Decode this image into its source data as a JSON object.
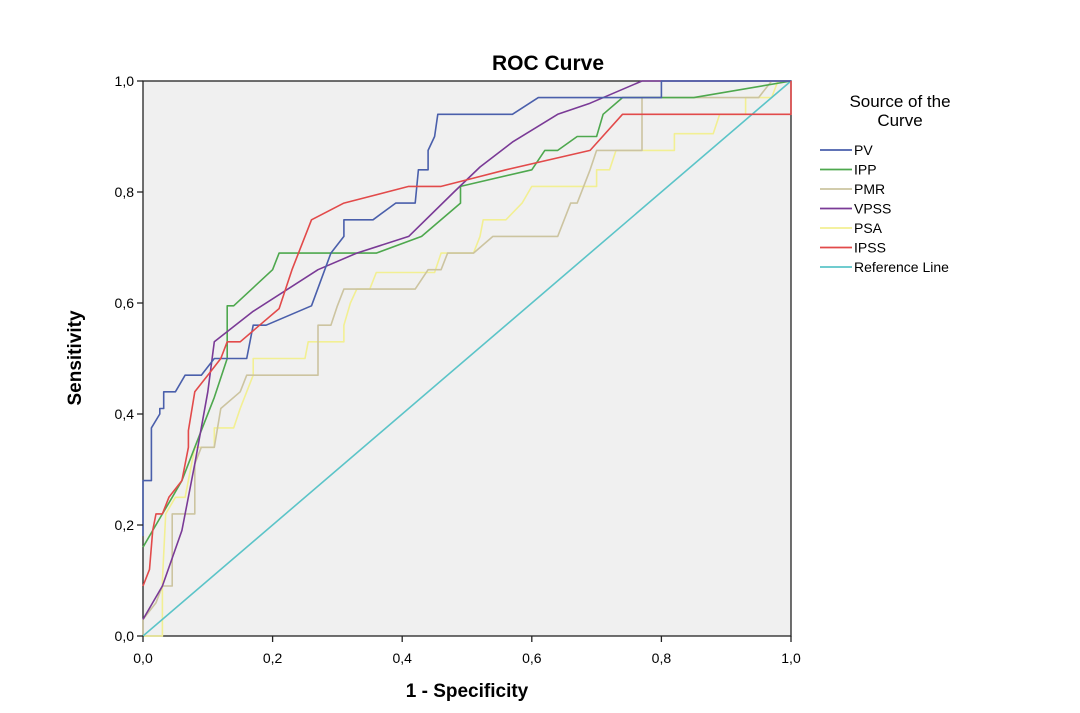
{
  "chart_data": {
    "type": "line",
    "title": "ROC Curve",
    "xlabel": "1 - Specificity",
    "ylabel": "Sensitivity",
    "xlim": [
      0,
      1
    ],
    "ylim": [
      0,
      1
    ],
    "xticks": [
      "0,0",
      "0,2",
      "0,4",
      "0,6",
      "0,8",
      "1,0"
    ],
    "yticks": [
      "0,0",
      "0,2",
      "0,4",
      "0,6",
      "0,8",
      "1,0"
    ],
    "grid": false,
    "legend": {
      "title_line1": "Source of the",
      "title_line2": "Curve",
      "placement": "right"
    },
    "series": [
      {
        "name": "PV",
        "color": "#4a5fab",
        "points": [
          [
            0,
            0.18
          ],
          [
            0,
            0.28
          ],
          [
            0.013,
            0.28
          ],
          [
            0.013,
            0.375
          ],
          [
            0.026,
            0.4
          ],
          [
            0.026,
            0.41
          ],
          [
            0.032,
            0.41
          ],
          [
            0.032,
            0.44
          ],
          [
            0.05,
            0.44
          ],
          [
            0.065,
            0.47
          ],
          [
            0.09,
            0.47
          ],
          [
            0.11,
            0.5
          ],
          [
            0.16,
            0.5
          ],
          [
            0.17,
            0.56
          ],
          [
            0.19,
            0.56
          ],
          [
            0.26,
            0.595
          ],
          [
            0.29,
            0.69
          ],
          [
            0.31,
            0.72
          ],
          [
            0.31,
            0.75
          ],
          [
            0.355,
            0.75
          ],
          [
            0.39,
            0.78
          ],
          [
            0.42,
            0.78
          ],
          [
            0.425,
            0.84
          ],
          [
            0.44,
            0.84
          ],
          [
            0.44,
            0.875
          ],
          [
            0.45,
            0.9
          ],
          [
            0.455,
            0.94
          ],
          [
            0.57,
            0.94
          ],
          [
            0.61,
            0.97
          ],
          [
            0.8,
            0.97
          ],
          [
            0.8,
            1.0
          ],
          [
            1.0,
            1.0
          ]
        ]
      },
      {
        "name": "IPP",
        "color": "#4ea84e",
        "points": [
          [
            0,
            0.16
          ],
          [
            0.015,
            0.19
          ],
          [
            0.03,
            0.22
          ],
          [
            0.045,
            0.25
          ],
          [
            0.06,
            0.28
          ],
          [
            0.09,
            0.37
          ],
          [
            0.11,
            0.43
          ],
          [
            0.13,
            0.5
          ],
          [
            0.13,
            0.595
          ],
          [
            0.14,
            0.595
          ],
          [
            0.2,
            0.66
          ],
          [
            0.21,
            0.69
          ],
          [
            0.36,
            0.69
          ],
          [
            0.43,
            0.72
          ],
          [
            0.49,
            0.78
          ],
          [
            0.49,
            0.81
          ],
          [
            0.6,
            0.84
          ],
          [
            0.62,
            0.875
          ],
          [
            0.64,
            0.875
          ],
          [
            0.67,
            0.9
          ],
          [
            0.7,
            0.9
          ],
          [
            0.71,
            0.94
          ],
          [
            0.74,
            0.97
          ],
          [
            0.85,
            0.97
          ],
          [
            1.0,
            1.0
          ]
        ]
      },
      {
        "name": "PMR",
        "color": "#ccc4a0",
        "points": [
          [
            0,
            0.0
          ],
          [
            0,
            0.03
          ],
          [
            0.02,
            0.06
          ],
          [
            0.03,
            0.09
          ],
          [
            0.045,
            0.09
          ],
          [
            0.045,
            0.22
          ],
          [
            0.08,
            0.22
          ],
          [
            0.08,
            0.31
          ],
          [
            0.09,
            0.34
          ],
          [
            0.11,
            0.34
          ],
          [
            0.12,
            0.41
          ],
          [
            0.15,
            0.44
          ],
          [
            0.16,
            0.47
          ],
          [
            0.27,
            0.47
          ],
          [
            0.27,
            0.56
          ],
          [
            0.29,
            0.56
          ],
          [
            0.3,
            0.595
          ],
          [
            0.31,
            0.625
          ],
          [
            0.42,
            0.625
          ],
          [
            0.44,
            0.66
          ],
          [
            0.46,
            0.66
          ],
          [
            0.47,
            0.69
          ],
          [
            0.51,
            0.69
          ],
          [
            0.54,
            0.72
          ],
          [
            0.64,
            0.72
          ],
          [
            0.66,
            0.78
          ],
          [
            0.67,
            0.78
          ],
          [
            0.69,
            0.84
          ],
          [
            0.7,
            0.875
          ],
          [
            0.77,
            0.875
          ],
          [
            0.77,
            0.97
          ],
          [
            0.95,
            0.97
          ],
          [
            0.97,
            1.0
          ],
          [
            1.0,
            1.0
          ]
        ]
      },
      {
        "name": "VPSS",
        "color": "#7a3a96",
        "points": [
          [
            0,
            0.03
          ],
          [
            0.03,
            0.09
          ],
          [
            0.06,
            0.19
          ],
          [
            0.08,
            0.31
          ],
          [
            0.1,
            0.44
          ],
          [
            0.11,
            0.53
          ],
          [
            0.17,
            0.585
          ],
          [
            0.27,
            0.66
          ],
          [
            0.33,
            0.69
          ],
          [
            0.41,
            0.72
          ],
          [
            0.48,
            0.8
          ],
          [
            0.52,
            0.845
          ],
          [
            0.57,
            0.89
          ],
          [
            0.64,
            0.94
          ],
          [
            0.69,
            0.96
          ],
          [
            0.77,
            1.0
          ],
          [
            1.0,
            1.0
          ]
        ]
      },
      {
        "name": "PSA",
        "color": "#f2ef93",
        "points": [
          [
            0,
            0.0
          ],
          [
            0.03,
            0.0
          ],
          [
            0.03,
            0.1
          ],
          [
            0.035,
            0.22
          ],
          [
            0.05,
            0.25
          ],
          [
            0.065,
            0.25
          ],
          [
            0.08,
            0.34
          ],
          [
            0.11,
            0.34
          ],
          [
            0.11,
            0.375
          ],
          [
            0.14,
            0.375
          ],
          [
            0.15,
            0.41
          ],
          [
            0.16,
            0.44
          ],
          [
            0.17,
            0.47
          ],
          [
            0.17,
            0.5
          ],
          [
            0.25,
            0.5
          ],
          [
            0.255,
            0.53
          ],
          [
            0.31,
            0.53
          ],
          [
            0.31,
            0.56
          ],
          [
            0.32,
            0.6
          ],
          [
            0.33,
            0.625
          ],
          [
            0.35,
            0.625
          ],
          [
            0.36,
            0.655
          ],
          [
            0.45,
            0.655
          ],
          [
            0.46,
            0.69
          ],
          [
            0.51,
            0.69
          ],
          [
            0.52,
            0.72
          ],
          [
            0.525,
            0.75
          ],
          [
            0.56,
            0.75
          ],
          [
            0.585,
            0.78
          ],
          [
            0.6,
            0.81
          ],
          [
            0.7,
            0.81
          ],
          [
            0.7,
            0.84
          ],
          [
            0.72,
            0.84
          ],
          [
            0.73,
            0.875
          ],
          [
            0.82,
            0.875
          ],
          [
            0.82,
            0.905
          ],
          [
            0.88,
            0.905
          ],
          [
            0.89,
            0.94
          ],
          [
            0.93,
            0.94
          ],
          [
            0.93,
            0.97
          ],
          [
            0.97,
            0.97
          ],
          [
            0.98,
            1.0
          ],
          [
            1.0,
            1.0
          ]
        ]
      },
      {
        "name": "IPSS",
        "color": "#e24a4a",
        "points": [
          [
            0,
            0.09
          ],
          [
            0.01,
            0.12
          ],
          [
            0.015,
            0.19
          ],
          [
            0.02,
            0.22
          ],
          [
            0.03,
            0.22
          ],
          [
            0.04,
            0.25
          ],
          [
            0.06,
            0.28
          ],
          [
            0.07,
            0.34
          ],
          [
            0.07,
            0.37
          ],
          [
            0.08,
            0.44
          ],
          [
            0.1,
            0.47
          ],
          [
            0.12,
            0.5
          ],
          [
            0.13,
            0.53
          ],
          [
            0.15,
            0.53
          ],
          [
            0.18,
            0.56
          ],
          [
            0.21,
            0.59
          ],
          [
            0.23,
            0.66
          ],
          [
            0.26,
            0.75
          ],
          [
            0.31,
            0.78
          ],
          [
            0.41,
            0.81
          ],
          [
            0.46,
            0.81
          ],
          [
            0.51,
            0.825
          ],
          [
            0.56,
            0.84
          ],
          [
            0.69,
            0.875
          ],
          [
            0.74,
            0.94
          ],
          [
            1.0,
            0.94
          ],
          [
            1.0,
            1.0
          ]
        ]
      },
      {
        "name": "Reference Line",
        "color": "#5bc4c8",
        "points": [
          [
            0,
            0
          ],
          [
            1,
            1
          ]
        ]
      }
    ]
  }
}
